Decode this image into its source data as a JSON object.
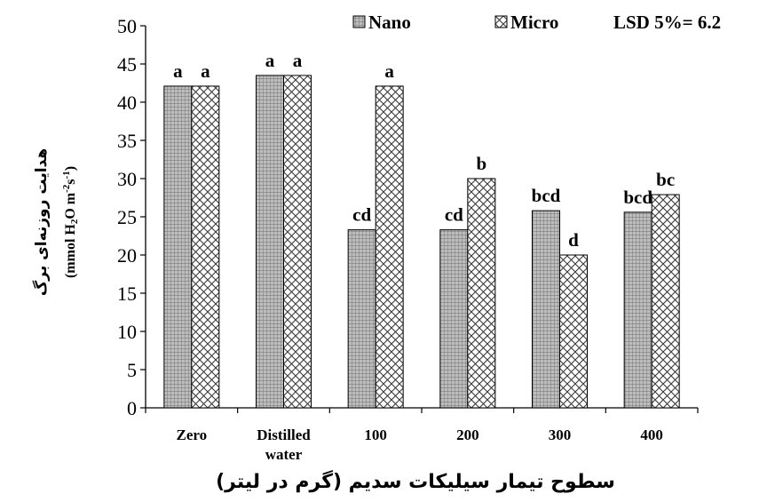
{
  "chart_data": {
    "type": "bar",
    "categories": [
      "Zero",
      "Distilled water",
      "100",
      "200",
      "300",
      "400"
    ],
    "category_lines": [
      [
        "Zero"
      ],
      [
        "Distilled",
        "water"
      ],
      [
        "100"
      ],
      [
        "200"
      ],
      [
        "300"
      ],
      [
        "400"
      ]
    ],
    "series": [
      {
        "name": "Nano",
        "values": [
          42.1,
          43.5,
          23.3,
          23.3,
          25.8,
          25.6
        ],
        "labels": [
          "a",
          "a",
          "cd",
          "cd",
          "bcd",
          "bcd"
        ],
        "color": "#a6a6a6",
        "pattern": "grid"
      },
      {
        "name": "Micro",
        "values": [
          42.1,
          43.5,
          42.1,
          30.0,
          20.0,
          27.9
        ],
        "labels": [
          "a",
          "a",
          "a",
          "b",
          "d",
          "bc"
        ],
        "color": "#ffffff",
        "pattern": "crosshatch"
      }
    ],
    "ylim": [
      0,
      50
    ],
    "yticks": [
      0,
      5,
      10,
      15,
      20,
      25,
      30,
      35,
      40,
      45,
      50
    ],
    "xlabel": "سطوح تیمار سیلیکات سدیم (گرم در لیتر)",
    "ylabel": "هدایت روزنه‌ای برگ",
    "ylabel_unit": "(mmol H2O m-2s-1)",
    "annotation": "LSD 5%= 6.2",
    "legend_position": "top",
    "grid": false
  }
}
